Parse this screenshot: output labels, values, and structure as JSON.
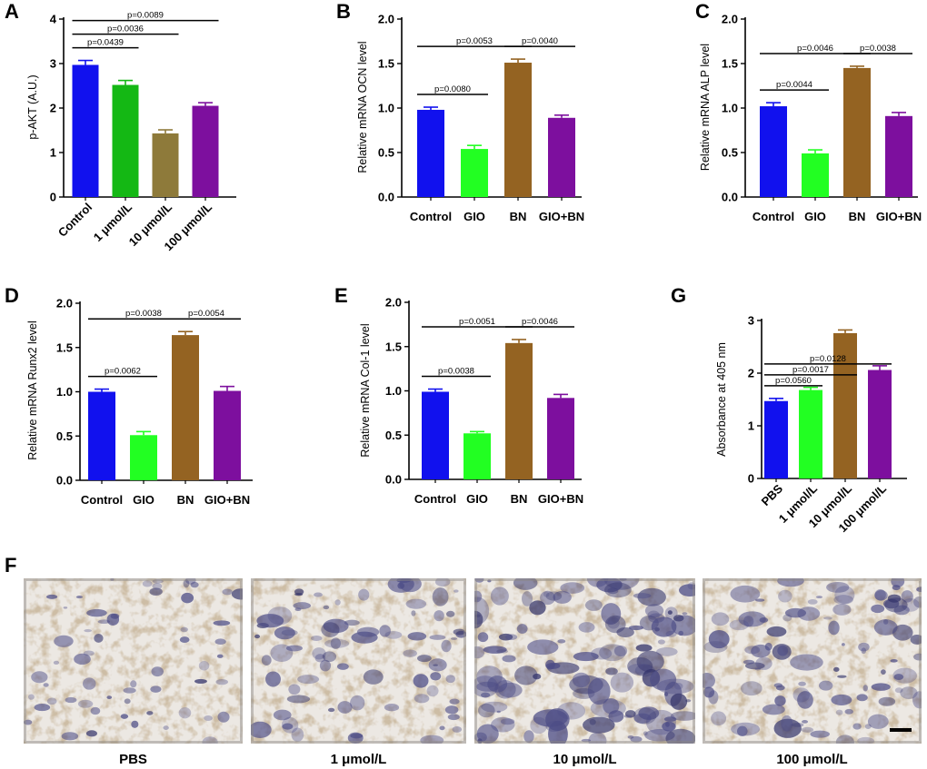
{
  "chart_data": [
    {
      "panel": "A",
      "type": "bar",
      "ylabel": "p-AKT (A.U.)",
      "ylim": [
        0,
        4
      ],
      "yticks": [
        "0",
        "1",
        "2",
        "3",
        "4"
      ],
      "categories": [
        "Control",
        "1 μmol/L",
        "10 μmol/L",
        "100 μmol/L"
      ],
      "values": [
        2.97,
        2.52,
        1.43,
        2.05
      ],
      "errors": [
        0.1,
        0.1,
        0.08,
        0.07
      ],
      "colors": [
        "#1111ee",
        "#14b814",
        "#8e7a3a",
        "#7d0f9e"
      ],
      "rotate_labels": true,
      "comparisons": [
        {
          "from": 0,
          "to": 1,
          "label": "p=0.0439"
        },
        {
          "from": 0,
          "to": 2,
          "label": "p=0.0036"
        },
        {
          "from": 0,
          "to": 3,
          "label": "p=0.0089"
        }
      ]
    },
    {
      "panel": "B",
      "type": "bar",
      "ylabel": "Relative mRNA OCN level",
      "ylim": [
        0,
        2
      ],
      "yticks": [
        "0.0",
        "0.5",
        "1.0",
        "1.5",
        "2.0"
      ],
      "categories": [
        "Control",
        "GIO",
        "BN",
        "GIO+BN"
      ],
      "values": [
        0.98,
        0.54,
        1.51,
        0.89
      ],
      "errors": [
        0.03,
        0.04,
        0.04,
        0.03
      ],
      "colors": [
        "#1111ee",
        "#22ff22",
        "#946322",
        "#7d0f9e"
      ],
      "rotate_labels": false,
      "comparisons": [
        {
          "from": 0,
          "to": 1,
          "label": "p=0.0080"
        },
        {
          "from": 0,
          "to": 2,
          "label": "p=0.0053"
        },
        {
          "from": 2,
          "to": 3,
          "label": "p=0.0040"
        }
      ]
    },
    {
      "panel": "C",
      "type": "bar",
      "ylabel": "Relative mRNA ALP level",
      "ylim": [
        0,
        2
      ],
      "yticks": [
        "0.0",
        "0.5",
        "1.0",
        "1.5",
        "2.0"
      ],
      "categories": [
        "Control",
        "GIO",
        "BN",
        "GIO+BN"
      ],
      "values": [
        1.02,
        0.49,
        1.45,
        0.91
      ],
      "errors": [
        0.04,
        0.04,
        0.02,
        0.04
      ],
      "colors": [
        "#1111ee",
        "#22ff22",
        "#946322",
        "#7d0f9e"
      ],
      "rotate_labels": false,
      "comparisons": [
        {
          "from": 0,
          "to": 1,
          "label": "p=0.0044"
        },
        {
          "from": 0,
          "to": 2,
          "label": "p=0.0046"
        },
        {
          "from": 2,
          "to": 3,
          "label": "p=0.0038"
        }
      ]
    },
    {
      "panel": "D",
      "type": "bar",
      "ylabel": "Relative mRNA Runx2 level",
      "ylim": [
        0,
        2
      ],
      "yticks": [
        "0.0",
        "0.5",
        "1.0",
        "1.5",
        "2.0"
      ],
      "categories": [
        "Control",
        "GIO",
        "BN",
        "GIO+BN"
      ],
      "values": [
        1.0,
        0.51,
        1.64,
        1.01
      ],
      "errors": [
        0.03,
        0.04,
        0.04,
        0.05
      ],
      "colors": [
        "#1111ee",
        "#22ff22",
        "#946322",
        "#7d0f9e"
      ],
      "rotate_labels": false,
      "comparisons": [
        {
          "from": 0,
          "to": 1,
          "label": "p=0.0062"
        },
        {
          "from": 0,
          "to": 2,
          "label": "p=0.0038"
        },
        {
          "from": 2,
          "to": 3,
          "label": "p=0.0054"
        }
      ]
    },
    {
      "panel": "E",
      "type": "bar",
      "ylabel": "Relative mRNA Col-1 level",
      "ylim": [
        0,
        2
      ],
      "yticks": [
        "0.0",
        "0.5",
        "1.0",
        "1.5",
        "2.0"
      ],
      "categories": [
        "Control",
        "GIO",
        "BN",
        "GIO+BN"
      ],
      "values": [
        0.99,
        0.52,
        1.54,
        0.92
      ],
      "errors": [
        0.03,
        0.02,
        0.04,
        0.04
      ],
      "colors": [
        "#1111ee",
        "#22ff22",
        "#946322",
        "#7d0f9e"
      ],
      "rotate_labels": false,
      "comparisons": [
        {
          "from": 0,
          "to": 1,
          "label": "p=0.0038"
        },
        {
          "from": 0,
          "to": 2,
          "label": "p=0.0051"
        },
        {
          "from": 2,
          "to": 3,
          "label": "p=0.0046"
        }
      ]
    },
    {
      "panel": "G",
      "type": "bar",
      "ylabel": "Absorbance at 405 nm",
      "ylim": [
        0,
        3
      ],
      "yticks": [
        "0",
        "1",
        "2",
        "3"
      ],
      "categories": [
        "PBS",
        "1 μmol/L",
        "10 μmol/L",
        "100 μmol/L"
      ],
      "values": [
        1.47,
        1.68,
        2.76,
        2.06
      ],
      "errors": [
        0.05,
        0.05,
        0.06,
        0.08
      ],
      "colors": [
        "#1111ee",
        "#22ff22",
        "#946322",
        "#7d0f9e"
      ],
      "rotate_labels": true,
      "comparisons": [
        {
          "from": 0,
          "to": 1,
          "label": "p=0.0560"
        },
        {
          "from": 0,
          "to": 2,
          "label": "p=0.0017"
        },
        {
          "from": 0,
          "to": 3,
          "label": "p=0.0128"
        }
      ]
    }
  ],
  "micrographs": {
    "panel": "F",
    "labels": [
      "PBS",
      "1 μmol/L",
      "10 μmol/L",
      "100 μmol/L"
    ],
    "has_scale_bar": true
  }
}
